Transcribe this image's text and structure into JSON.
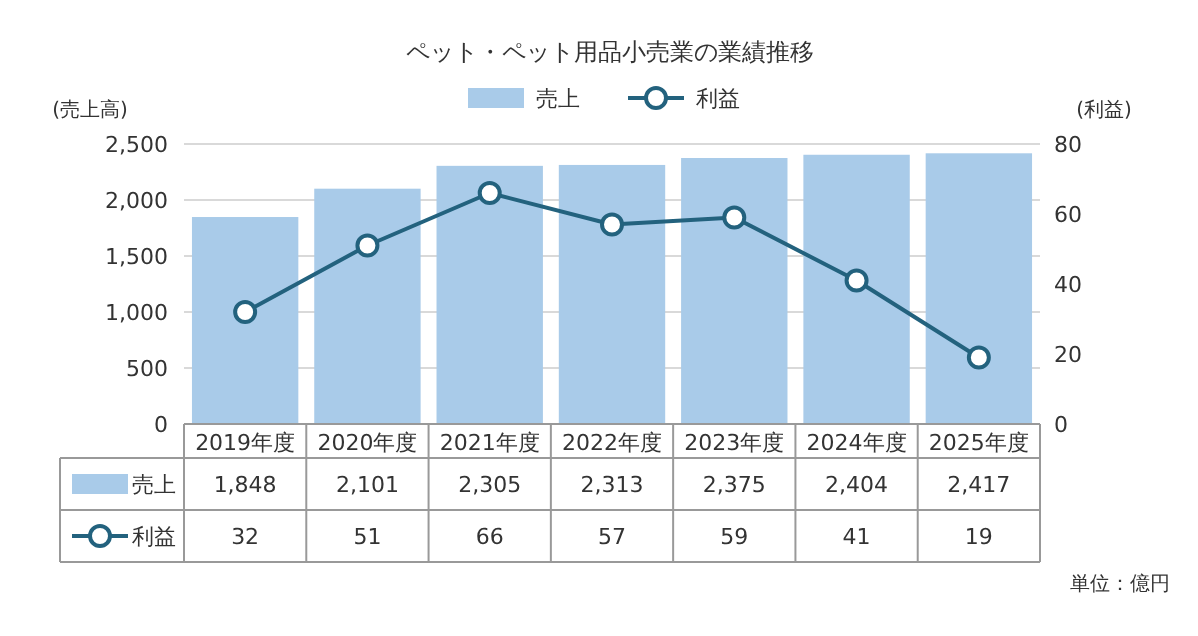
{
  "chart_data": {
    "type": "bar",
    "title": "ペット・ペット用品小売業の業績推移",
    "ylabel": "(売上高)",
    "y2label": "(利益)",
    "categories": [
      "2019年度",
      "2020年度",
      "2021年度",
      "2022年度",
      "2023年度",
      "2024年度",
      "2025年度"
    ],
    "series": [
      {
        "name": "売上",
        "color": "#a9cbe9",
        "values": [
          1848,
          2101,
          2305,
          2313,
          2375,
          2404,
          2417
        ],
        "value_labels": [
          "1,848",
          "2,101",
          "2,305",
          "2,313",
          "2,375",
          "2,404",
          "2,417"
        ]
      },
      {
        "name": "利益",
        "type": "line",
        "axis": "y2",
        "color": "#23627e",
        "values": [
          32,
          51,
          66,
          57,
          59,
          41,
          19
        ]
      }
    ],
    "ylim": [
      0,
      2500
    ],
    "yticks": [
      0,
      500,
      {
        "value": 1000,
        "label": "1,000"
      },
      {
        "value": 1500,
        "label": "1,500"
      },
      {
        "value": 2000,
        "label": "2,000"
      },
      {
        "value": 2500,
        "label": "2,500"
      }
    ],
    "y2lim": [
      0,
      80
    ],
    "y2ticks": [
      0,
      20,
      40,
      60,
      80
    ],
    "grid": "y",
    "legend": "top",
    "marker": "circle",
    "data_labels": true,
    "annotations": [
      "単位：億円"
    ]
  }
}
